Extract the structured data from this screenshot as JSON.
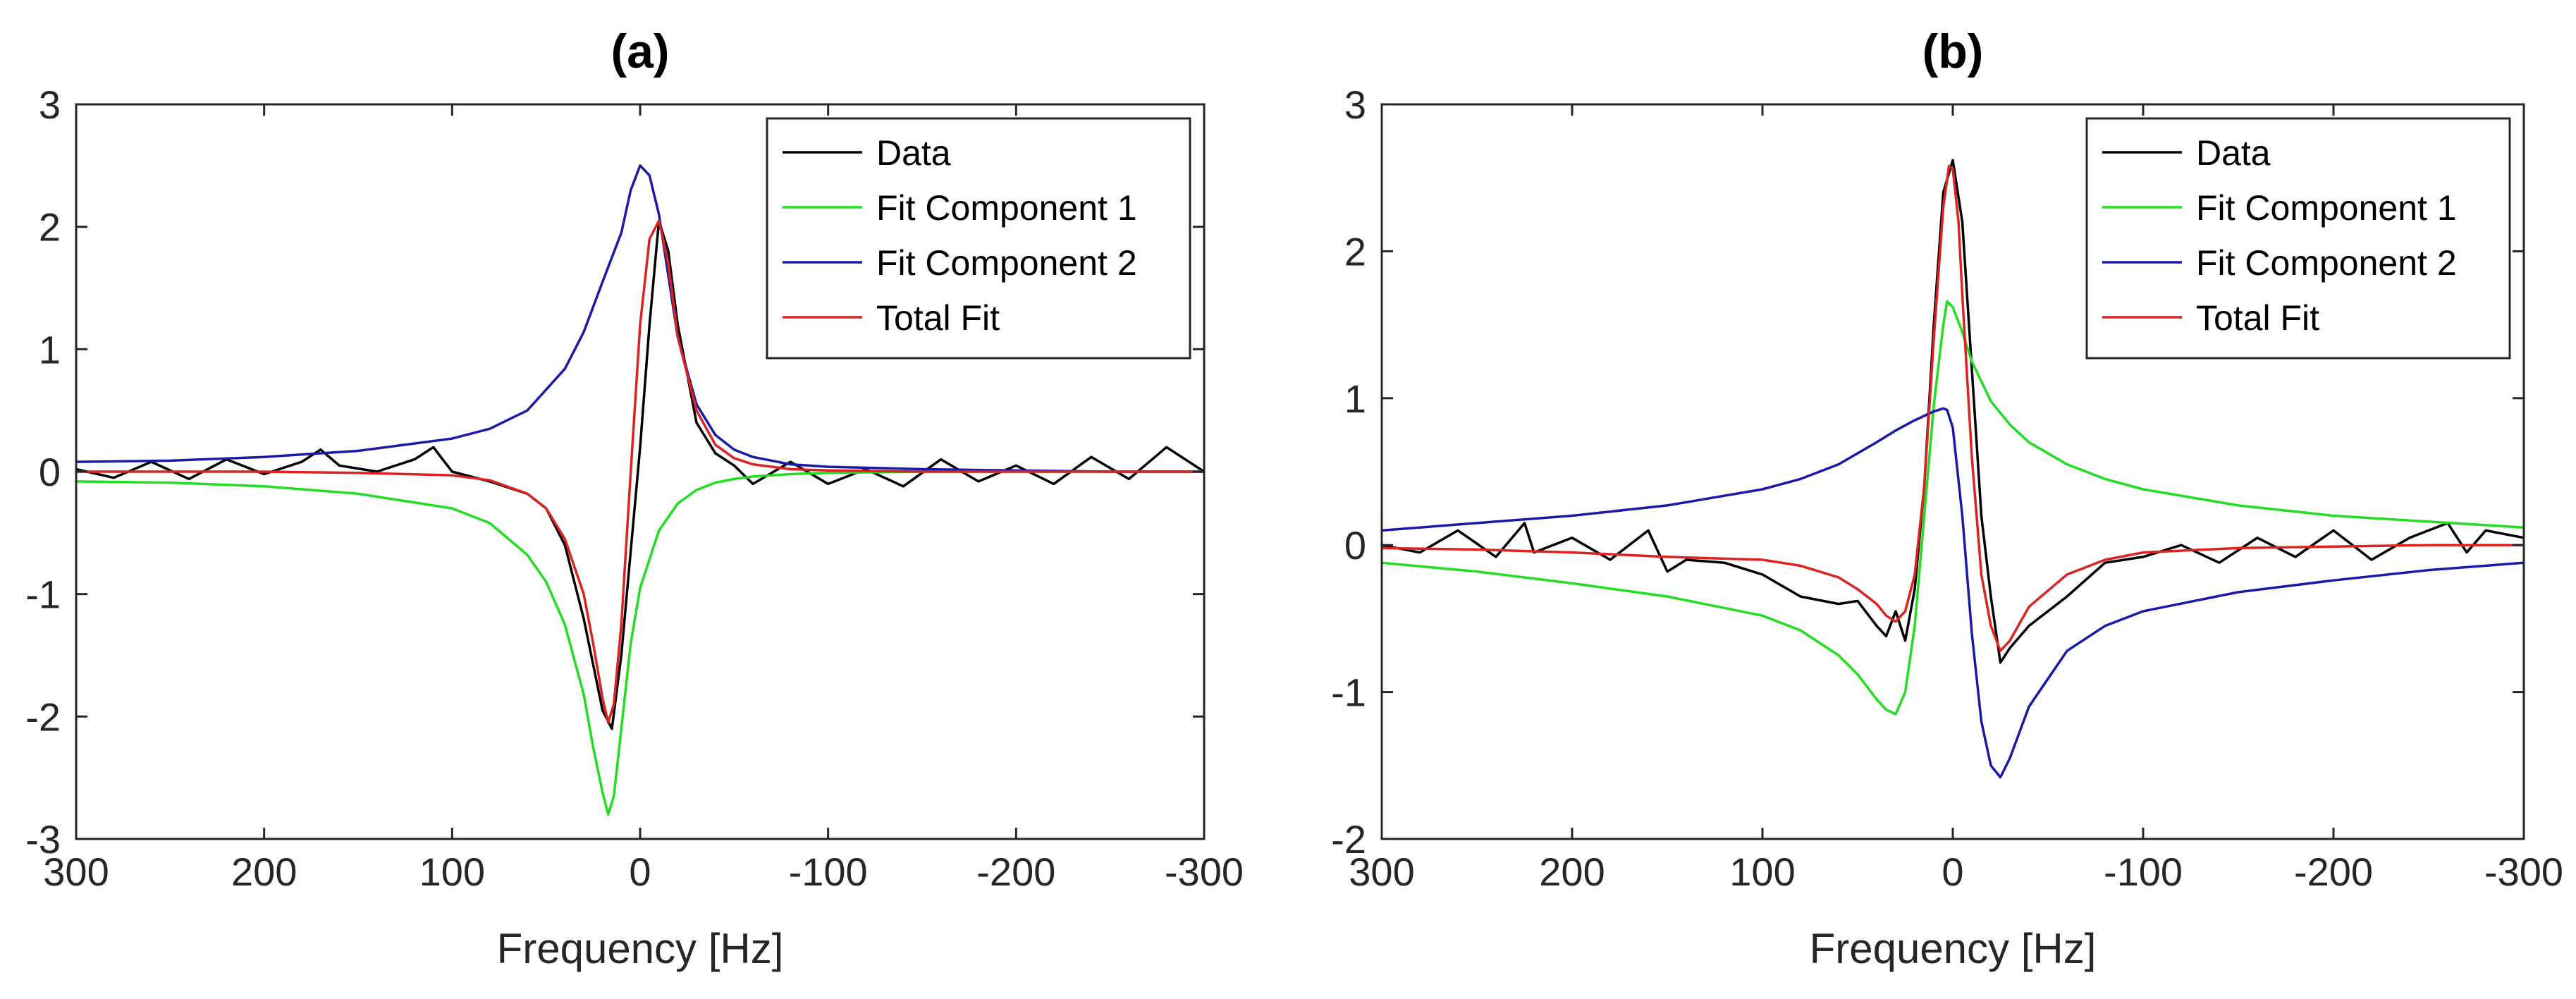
{
  "chart_data": [
    {
      "type": "line",
      "title": "(a)",
      "xlabel": "Frequency [Hz]",
      "ylabel": "",
      "xlim": [
        300,
        -300
      ],
      "ylim": [
        -3,
        3
      ],
      "x_reversed": true,
      "xticks": [
        300,
        200,
        100,
        0,
        -100,
        -200,
        -300
      ],
      "xtick_labels": [
        "300",
        "200",
        "100",
        "0",
        "-100",
        "-200",
        "-300"
      ],
      "yticks": [
        -3,
        -2,
        -1,
        0,
        1,
        2,
        3
      ],
      "ytick_labels": [
        "-3",
        "-2",
        "-1",
        "0",
        "1",
        "2",
        "3"
      ],
      "grid": false,
      "legend_position": "top-right",
      "series": [
        {
          "name": "Data",
          "color": "#000000",
          "x": [
            300,
            280,
            260,
            240,
            220,
            200,
            180,
            170,
            160,
            140,
            120,
            110,
            100,
            80,
            60,
            50,
            40,
            30,
            20,
            15,
            10,
            0,
            -5,
            -10,
            -15,
            -20,
            -30,
            -40,
            -50,
            -60,
            -80,
            -100,
            -120,
            -140,
            -160,
            -180,
            -200,
            -220,
            -240,
            -260,
            -280,
            -300
          ],
          "y": [
            0.02,
            -0.05,
            0.08,
            -0.06,
            0.1,
            -0.02,
            0.08,
            0.18,
            0.05,
            0.0,
            0.1,
            0.2,
            0.0,
            -0.08,
            -0.18,
            -0.3,
            -0.6,
            -1.2,
            -1.95,
            -2.1,
            -1.5,
            0.2,
            1.2,
            2.05,
            1.8,
            1.2,
            0.4,
            0.15,
            0.05,
            -0.1,
            0.08,
            -0.1,
            0.02,
            -0.12,
            0.1,
            -0.08,
            0.05,
            -0.1,
            0.12,
            -0.06,
            0.2,
            0.0
          ]
        },
        {
          "name": "Fit Component 1",
          "color": "#22dd22",
          "x": [
            300,
            250,
            200,
            150,
            100,
            80,
            60,
            50,
            40,
            30,
            25,
            20,
            17,
            14,
            10,
            5,
            0,
            -10,
            -20,
            -30,
            -40,
            -50,
            -60,
            -80,
            -100,
            -150,
            -200,
            -250,
            -300
          ],
          "y": [
            -0.08,
            -0.09,
            -0.12,
            -0.18,
            -0.3,
            -0.42,
            -0.68,
            -0.9,
            -1.25,
            -1.82,
            -2.25,
            -2.62,
            -2.8,
            -2.65,
            -2.1,
            -1.4,
            -0.95,
            -0.48,
            -0.26,
            -0.15,
            -0.09,
            -0.06,
            -0.04,
            -0.02,
            -0.01,
            0.0,
            0.0,
            0.0,
            0.0
          ]
        },
        {
          "name": "Fit Component 2",
          "color": "#1a1aaa",
          "x": [
            300,
            250,
            200,
            150,
            100,
            80,
            60,
            40,
            30,
            20,
            10,
            5,
            0,
            -5,
            -10,
            -15,
            -20,
            -30,
            -40,
            -50,
            -60,
            -80,
            -100,
            -150,
            -200,
            -250,
            -300
          ],
          "y": [
            0.08,
            0.09,
            0.12,
            0.17,
            0.27,
            0.35,
            0.5,
            0.84,
            1.14,
            1.55,
            1.95,
            2.3,
            2.5,
            2.42,
            2.1,
            1.6,
            1.1,
            0.55,
            0.3,
            0.18,
            0.12,
            0.06,
            0.04,
            0.02,
            0.01,
            0.0,
            0.0
          ]
        },
        {
          "name": "Total Fit",
          "color": "#dd2222",
          "x": [
            300,
            250,
            200,
            150,
            100,
            80,
            60,
            50,
            40,
            30,
            25,
            20,
            17,
            14,
            10,
            5,
            0,
            -5,
            -10,
            -15,
            -20,
            -30,
            -40,
            -50,
            -60,
            -80,
            -100,
            -150,
            -200,
            -250,
            -300
          ],
          "y": [
            0.0,
            0.0,
            0.0,
            -0.01,
            -0.03,
            -0.07,
            -0.18,
            -0.3,
            -0.55,
            -1.0,
            -1.4,
            -1.85,
            -2.05,
            -1.9,
            -1.25,
            0.0,
            1.2,
            1.9,
            2.05,
            1.7,
            1.1,
            0.5,
            0.22,
            0.11,
            0.06,
            0.02,
            0.01,
            0.0,
            0.0,
            0.0,
            0.0
          ]
        }
      ]
    },
    {
      "type": "line",
      "title": "(b)",
      "xlabel": "Frequency [Hz]",
      "ylabel": "",
      "xlim": [
        300,
        -300
      ],
      "ylim": [
        -2,
        3
      ],
      "x_reversed": true,
      "xticks": [
        300,
        200,
        100,
        0,
        -100,
        -200,
        -300
      ],
      "xtick_labels": [
        "300",
        "200",
        "100",
        "0",
        "-100",
        "-200",
        "-300"
      ],
      "yticks": [
        -2,
        -1,
        0,
        1,
        2,
        3
      ],
      "ytick_labels": [
        "-2",
        "-1",
        "0",
        "1",
        "2",
        "3"
      ],
      "grid": false,
      "legend_position": "top-right",
      "series": [
        {
          "name": "Data",
          "color": "#000000",
          "x": [
            300,
            280,
            260,
            240,
            225,
            220,
            200,
            180,
            160,
            150,
            140,
            120,
            100,
            80,
            60,
            50,
            40,
            35,
            30,
            25,
            20,
            15,
            10,
            5,
            0,
            -5,
            -10,
            -15,
            -20,
            -25,
            -30,
            -40,
            -60,
            -80,
            -100,
            -120,
            -140,
            -160,
            -180,
            -200,
            -220,
            -240,
            -260,
            -270,
            -280,
            -300
          ],
          "y": [
            0.0,
            -0.05,
            0.1,
            -0.08,
            0.15,
            -0.05,
            0.05,
            -0.1,
            0.1,
            -0.18,
            -0.1,
            -0.12,
            -0.2,
            -0.35,
            -0.4,
            -0.38,
            -0.55,
            -0.62,
            -0.45,
            -0.65,
            -0.3,
            0.4,
            1.5,
            2.4,
            2.62,
            2.2,
            1.2,
            0.2,
            -0.35,
            -0.8,
            -0.7,
            -0.55,
            -0.35,
            -0.12,
            -0.08,
            0.0,
            -0.12,
            0.05,
            -0.08,
            0.1,
            -0.1,
            0.05,
            0.15,
            -0.05,
            0.1,
            0.05
          ]
        },
        {
          "name": "Fit Component 1",
          "color": "#22dd22",
          "x": [
            300,
            250,
            200,
            150,
            100,
            80,
            60,
            50,
            40,
            35,
            30,
            25,
            20,
            15,
            10,
            5,
            3,
            0,
            -5,
            -10,
            -20,
            -30,
            -40,
            -60,
            -80,
            -100,
            -150,
            -200,
            -250,
            -300
          ],
          "y": [
            -0.12,
            -0.18,
            -0.26,
            -0.35,
            -0.48,
            -0.58,
            -0.75,
            -0.88,
            -1.05,
            -1.12,
            -1.15,
            -1.0,
            -0.55,
            0.2,
            0.95,
            1.5,
            1.66,
            1.62,
            1.45,
            1.25,
            0.98,
            0.82,
            0.7,
            0.55,
            0.45,
            0.38,
            0.27,
            0.2,
            0.16,
            0.12
          ]
        },
        {
          "name": "Fit Component 2",
          "color": "#1a1aaa",
          "x": [
            300,
            250,
            200,
            150,
            100,
            80,
            60,
            40,
            30,
            20,
            10,
            5,
            3,
            0,
            -5,
            -10,
            -15,
            -20,
            -25,
            -30,
            -40,
            -60,
            -80,
            -100,
            -150,
            -200,
            -250,
            -300
          ],
          "y": [
            0.1,
            0.15,
            0.2,
            0.27,
            0.38,
            0.45,
            0.55,
            0.7,
            0.78,
            0.85,
            0.91,
            0.93,
            0.92,
            0.8,
            0.2,
            -0.6,
            -1.2,
            -1.5,
            -1.58,
            -1.45,
            -1.1,
            -0.72,
            -0.55,
            -0.45,
            -0.32,
            -0.24,
            -0.17,
            -0.12
          ]
        },
        {
          "name": "Total Fit",
          "color": "#dd2222",
          "x": [
            300,
            250,
            200,
            150,
            100,
            80,
            60,
            50,
            40,
            35,
            30,
            25,
            20,
            15,
            10,
            5,
            2,
            0,
            -3,
            -5,
            -10,
            -15,
            -20,
            -25,
            -30,
            -40,
            -60,
            -80,
            -100,
            -150,
            -200,
            -250,
            -300
          ],
          "y": [
            -0.02,
            -0.03,
            -0.05,
            -0.08,
            -0.1,
            -0.14,
            -0.22,
            -0.3,
            -0.4,
            -0.48,
            -0.52,
            -0.45,
            -0.2,
            0.4,
            1.4,
            2.3,
            2.58,
            2.56,
            2.2,
            1.7,
            0.6,
            -0.2,
            -0.55,
            -0.72,
            -0.65,
            -0.42,
            -0.2,
            -0.1,
            -0.05,
            -0.02,
            -0.01,
            0.0,
            0.0
          ]
        }
      ]
    }
  ]
}
